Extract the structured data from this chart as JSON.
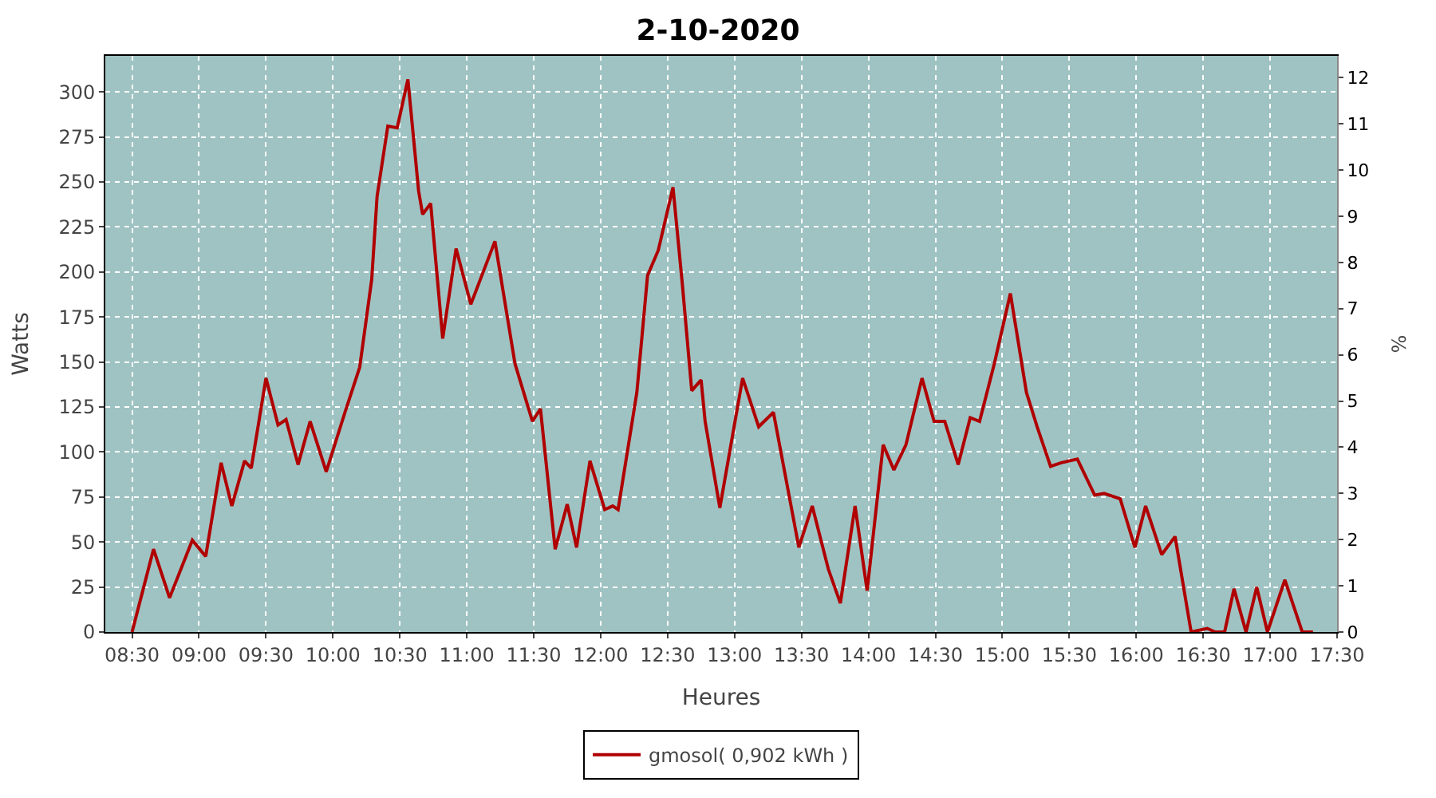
{
  "chart_data": {
    "type": "line",
    "title": "2-10-2020",
    "xlabel": "Heures",
    "ylabel": "Watts",
    "y2label": "%",
    "x": [
      8.5,
      8.66,
      8.78,
      8.95,
      9.05,
      9.165,
      9.245,
      9.34,
      9.39,
      9.5,
      9.59,
      9.65,
      9.74,
      9.83,
      9.95,
      10.09,
      10.2,
      10.29,
      10.33,
      10.41,
      10.48,
      10.56,
      10.64,
      10.67,
      10.73,
      10.82,
      10.92,
      11.03,
      11.21,
      11.36,
      11.49,
      11.55,
      11.66,
      11.75,
      11.82,
      11.92,
      12.03,
      12.09,
      12.13,
      12.27,
      12.35,
      12.43,
      12.54,
      12.61,
      12.68,
      12.75,
      12.78,
      12.89,
      13.06,
      13.18,
      13.29,
      13.48,
      13.58,
      13.7,
      13.79,
      13.9,
      13.99,
      14.11,
      14.19,
      14.28,
      14.4,
      14.49,
      14.57,
      14.67,
      14.76,
      14.83,
      14.94,
      15.06,
      15.18,
      15.26,
      15.36,
      15.44,
      15.56,
      15.69,
      15.76,
      15.88,
      15.99,
      16.07,
      16.19,
      16.29,
      16.41,
      16.53,
      16.59,
      16.66,
      16.73,
      16.82,
      16.9,
      16.98,
      17.11,
      17.24,
      17.32
    ],
    "series": [
      {
        "name": "gmosol( 0,902 kWh )",
        "color": "#b00000",
        "values": [
          0,
          46,
          19,
          51,
          42,
          94,
          70,
          95,
          91,
          141,
          115,
          118,
          93,
          117,
          89,
          122,
          147,
          196,
          242,
          281,
          280,
          307,
          245,
          232,
          238,
          163,
          213,
          182,
          217,
          149,
          117,
          124,
          46,
          71,
          47,
          95,
          68,
          70,
          68,
          133,
          198,
          212,
          247,
          193,
          134,
          140,
          117,
          69,
          141,
          114,
          122,
          47,
          70,
          35,
          16,
          70,
          23,
          104,
          90,
          104,
          141,
          117,
          117,
          93,
          119,
          117,
          149,
          188,
          133,
          114,
          92,
          94,
          96,
          76,
          77,
          74,
          47,
          70,
          43,
          53,
          0,
          2,
          0,
          0,
          24,
          0,
          25,
          0,
          29,
          0,
          0
        ]
      }
    ],
    "xlim": [
      8.3,
      17.5
    ],
    "xticks": [
      {
        "value": 8.5,
        "label": "08:30"
      },
      {
        "value": 9,
        "label": "09:00"
      },
      {
        "value": 9.5,
        "label": "09:30"
      },
      {
        "value": 10,
        "label": "10:00"
      },
      {
        "value": 10.5,
        "label": "10:30"
      },
      {
        "value": 11,
        "label": "11:00"
      },
      {
        "value": 11.5,
        "label": "11:30"
      },
      {
        "value": 12,
        "label": "12:00"
      },
      {
        "value": 12.5,
        "label": "12:30"
      },
      {
        "value": 13,
        "label": "13:00"
      },
      {
        "value": 13.5,
        "label": "13:30"
      },
      {
        "value": 14,
        "label": "14:00"
      },
      {
        "value": 14.5,
        "label": "14:30"
      },
      {
        "value": 15,
        "label": "15:00"
      },
      {
        "value": 15.5,
        "label": "15:30"
      },
      {
        "value": 16,
        "label": "16:00"
      },
      {
        "value": 16.5,
        "label": "16:30"
      },
      {
        "value": 17,
        "label": "17:00"
      },
      {
        "value": 17.5,
        "label": "17:30"
      }
    ],
    "ylim": [
      0,
      320
    ],
    "yticks": [
      0,
      25,
      50,
      75,
      100,
      125,
      150,
      175,
      200,
      225,
      250,
      275,
      300
    ],
    "y2lim": [
      0,
      12.47
    ],
    "y2ticks": [
      0,
      1,
      2,
      3,
      4,
      5,
      6,
      7,
      8,
      9,
      10,
      11,
      12
    ],
    "grid": true,
    "legend": "bottom",
    "line_style": "solid",
    "marker": "none"
  }
}
